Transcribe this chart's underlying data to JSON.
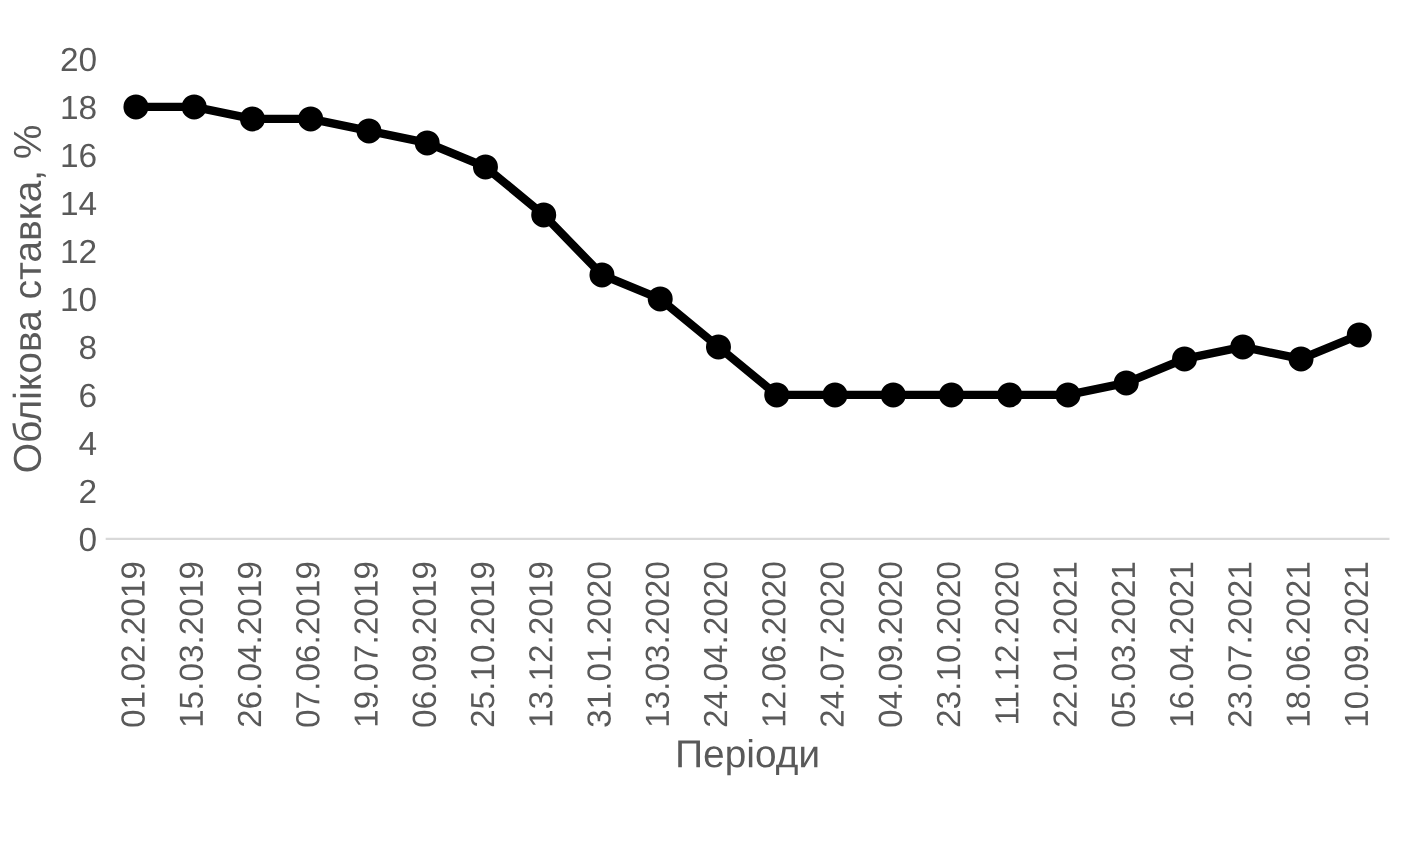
{
  "chart_data": {
    "type": "line",
    "xlabel": "Періоди",
    "ylabel": "Облікова ставка, %",
    "categories": [
      "01.02.2019",
      "15.03.2019",
      "26.04.2019",
      "07.06.2019",
      "19.07.2019",
      "06.09.2019",
      "25.10.2019",
      "13.12.2019",
      "31.01.2020",
      "13.03.2020",
      "24.04.2020",
      "12.06.2020",
      "24.07.2020",
      "04.09.2020",
      "23.10.2020",
      "11.12.2020",
      "22.01.2021",
      "05.03.2021",
      "16.04.2021",
      "23.07.2021",
      "18.06.2021",
      "10.09.2021"
    ],
    "series": [
      {
        "color": "#000000",
        "values": [
          18,
          18,
          17.5,
          17.5,
          17,
          16.5,
          15.5,
          13.5,
          11,
          10,
          8,
          6,
          6,
          6,
          6,
          6,
          6,
          6.5,
          7.5,
          8,
          7.5,
          8.5
        ]
      }
    ],
    "ylim": [
      0,
      20
    ],
    "yticks": [
      0,
      2,
      4,
      6,
      8,
      10,
      12,
      14,
      16,
      18,
      20
    ],
    "grid": false,
    "legend": false,
    "marker": "circle",
    "line_style": "solid"
  }
}
